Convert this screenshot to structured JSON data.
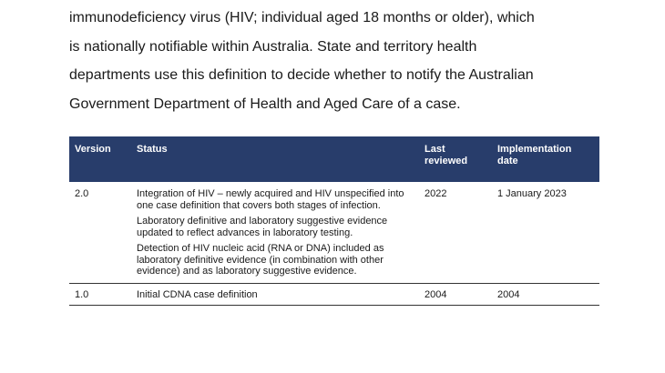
{
  "intro_lines": [
    "immunodeficiency virus (HIV; individual aged 18 months or older), which",
    "is nationally notifiable within Australia. State and territory health",
    "departments use this definition to decide whether to notify the Australian",
    "Government Department of Health and Aged Care of a case."
  ],
  "table": {
    "headers": {
      "version": "Version",
      "status": "Status",
      "last_reviewed": "Last reviewed",
      "implementation_date": "Implementation date"
    },
    "rows": [
      {
        "version": "2.0",
        "status": [
          "Integration of HIV – newly acquired and HIV unspecified into one case definition that covers both stages of infection.",
          "Laboratory definitive and laboratory suggestive evidence updated to reflect advances in laboratory testing.",
          "Detection of HIV nucleic acid (RNA or DNA) included as laboratory definitive evidence (in combination with other evidence) and as laboratory suggestive evidence."
        ],
        "last_reviewed": "2022",
        "implementation_date": "1 January 2023"
      },
      {
        "version": "1.0",
        "status": [
          "Initial CDNA case definition"
        ],
        "last_reviewed": "2004",
        "implementation_date": "2004"
      }
    ]
  }
}
